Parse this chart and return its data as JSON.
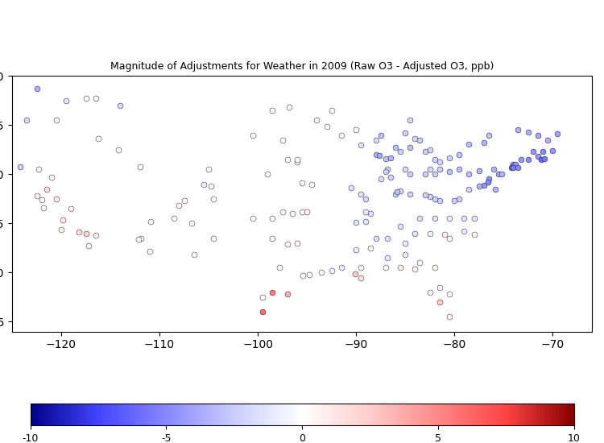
{
  "title": "Magnitude of Adjustments for Weather in 2009 (Raw O3 - Adjusted O3, ppb)",
  "colorbar_min": -10,
  "colorbar_max": 10,
  "colorbar_ticks": [
    -10,
    -5,
    0,
    5,
    10
  ],
  "stations": [
    {
      "lon": -122.5,
      "lat": 48.7,
      "val": -3.5
    },
    {
      "lon": -119.5,
      "lat": 47.5,
      "val": -1.5
    },
    {
      "lon": -114.0,
      "lat": 47.0,
      "val": -2.0
    },
    {
      "lon": -123.5,
      "lat": 45.5,
      "val": -2.0
    },
    {
      "lon": -120.5,
      "lat": 45.5,
      "val": 0.5
    },
    {
      "lon": -117.5,
      "lat": 47.7,
      "val": 0.2
    },
    {
      "lon": -122.5,
      "lat": 37.8,
      "val": 0.5
    },
    {
      "lon": -121.5,
      "lat": 38.5,
      "val": 1.5
    },
    {
      "lon": -120.5,
      "lat": 37.5,
      "val": 1.0
    },
    {
      "lon": -119.0,
      "lat": 36.5,
      "val": 0.5
    },
    {
      "lon": -117.5,
      "lat": 34.0,
      "val": 2.0
    },
    {
      "lon": -118.2,
      "lat": 34.1,
      "val": 1.5
    },
    {
      "lon": -116.5,
      "lat": 33.8,
      "val": 0.8
    },
    {
      "lon": -117.2,
      "lat": 32.7,
      "val": 0.5
    },
    {
      "lon": -122.0,
      "lat": 37.4,
      "val": 0.3
    },
    {
      "lon": -121.8,
      "lat": 36.6,
      "val": 0.2
    },
    {
      "lon": -120.0,
      "lat": 34.4,
      "val": 0.5
    },
    {
      "lon": -119.8,
      "lat": 35.4,
      "val": 1.0
    },
    {
      "lon": -121.0,
      "lat": 39.7,
      "val": 0.3
    },
    {
      "lon": -122.3,
      "lat": 40.5,
      "val": 0.5
    },
    {
      "lon": -124.2,
      "lat": 40.8,
      "val": -2.5
    },
    {
      "lon": -114.2,
      "lat": 42.5,
      "val": 0.2
    },
    {
      "lon": -112.0,
      "lat": 40.8,
      "val": 0.3
    },
    {
      "lon": -111.9,
      "lat": 33.5,
      "val": 0.3
    },
    {
      "lon": -112.1,
      "lat": 33.4,
      "val": 0.5
    },
    {
      "lon": -111.0,
      "lat": 32.2,
      "val": 0.3
    },
    {
      "lon": -110.9,
      "lat": 35.2,
      "val": 0.2
    },
    {
      "lon": -108.0,
      "lat": 36.8,
      "val": 0.5
    },
    {
      "lon": -106.7,
      "lat": 35.0,
      "val": 0.3
    },
    {
      "lon": -105.0,
      "lat": 40.5,
      "val": 0.2
    },
    {
      "lon": -105.5,
      "lat": 39.0,
      "val": -1.0
    },
    {
      "lon": -104.5,
      "lat": 37.5,
      "val": 0.2
    },
    {
      "lon": -104.8,
      "lat": 38.8,
      "val": -0.5
    },
    {
      "lon": -107.5,
      "lat": 37.3,
      "val": 0.3
    },
    {
      "lon": -108.5,
      "lat": 35.5,
      "val": 0.2
    },
    {
      "lon": -104.5,
      "lat": 33.5,
      "val": 0.5
    },
    {
      "lon": -106.5,
      "lat": 31.8,
      "val": 0.3
    },
    {
      "lon": -116.2,
      "lat": 43.6,
      "val": 0.2
    },
    {
      "lon": -116.5,
      "lat": 47.7,
      "val": 0.5
    },
    {
      "lon": -98.5,
      "lat": 46.5,
      "val": 0.2
    },
    {
      "lon": -100.5,
      "lat": 44.0,
      "val": 0.2
    },
    {
      "lon": -96.8,
      "lat": 46.8,
      "val": 0.2
    },
    {
      "lon": -97.0,
      "lat": 41.5,
      "val": 0.5
    },
    {
      "lon": -96.0,
      "lat": 41.3,
      "val": 0.5
    },
    {
      "lon": -95.5,
      "lat": 39.1,
      "val": 0.3
    },
    {
      "lon": -94.5,
      "lat": 39.0,
      "val": -0.5
    },
    {
      "lon": -93.0,
      "lat": 44.9,
      "val": 0.3
    },
    {
      "lon": -94.0,
      "lat": 45.5,
      "val": 0.5
    },
    {
      "lon": -92.5,
      "lat": 46.5,
      "val": 0.2
    },
    {
      "lon": -91.5,
      "lat": 44.0,
      "val": 0.5
    },
    {
      "lon": -90.0,
      "lat": 44.5,
      "val": 0.2
    },
    {
      "lon": -87.5,
      "lat": 44.0,
      "val": -3.0
    },
    {
      "lon": -88.0,
      "lat": 43.5,
      "val": -2.0
    },
    {
      "lon": -89.5,
      "lat": 43.0,
      "val": -1.5
    },
    {
      "lon": -88.0,
      "lat": 42.0,
      "val": -3.5
    },
    {
      "lon": -87.6,
      "lat": 41.9,
      "val": -4.0
    },
    {
      "lon": -87.0,
      "lat": 41.6,
      "val": -3.0
    },
    {
      "lon": -86.5,
      "lat": 41.7,
      "val": -3.5
    },
    {
      "lon": -86.0,
      "lat": 42.7,
      "val": -3.0
    },
    {
      "lon": -85.5,
      "lat": 42.3,
      "val": -2.5
    },
    {
      "lon": -84.5,
      "lat": 42.7,
      "val": -3.0
    },
    {
      "lon": -83.0,
      "lat": 42.3,
      "val": -2.5
    },
    {
      "lon": -84.0,
      "lat": 43.6,
      "val": -2.0
    },
    {
      "lon": -85.0,
      "lat": 44.2,
      "val": -2.5
    },
    {
      "lon": -84.5,
      "lat": 45.5,
      "val": -2.0
    },
    {
      "lon": -83.5,
      "lat": 43.5,
      "val": -2.5
    },
    {
      "lon": -82.5,
      "lat": 42.5,
      "val": -2.0
    },
    {
      "lon": -82.0,
      "lat": 41.5,
      "val": -2.5
    },
    {
      "lon": -81.5,
      "lat": 41.3,
      "val": -2.0
    },
    {
      "lon": -80.5,
      "lat": 41.7,
      "val": -2.5
    },
    {
      "lon": -79.5,
      "lat": 42.0,
      "val": -3.0
    },
    {
      "lon": -78.5,
      "lat": 43.1,
      "val": -3.0
    },
    {
      "lon": -77.0,
      "lat": 43.2,
      "val": -3.5
    },
    {
      "lon": -76.5,
      "lat": 44.0,
      "val": -3.0
    },
    {
      "lon": -73.5,
      "lat": 44.5,
      "val": -3.5
    },
    {
      "lon": -72.5,
      "lat": 44.3,
      "val": -3.5
    },
    {
      "lon": -71.5,
      "lat": 44.0,
      "val": -4.0
    },
    {
      "lon": -70.5,
      "lat": 43.5,
      "val": -3.5
    },
    {
      "lon": -69.5,
      "lat": 44.1,
      "val": -4.0
    },
    {
      "lon": -72.0,
      "lat": 42.3,
      "val": -4.5
    },
    {
      "lon": -71.0,
      "lat": 42.3,
      "val": -5.0
    },
    {
      "lon": -70.0,
      "lat": 42.4,
      "val": -4.5
    },
    {
      "lon": -74.0,
      "lat": 41.0,
      "val": -5.0
    },
    {
      "lon": -73.8,
      "lat": 41.0,
      "val": -4.5
    },
    {
      "lon": -73.2,
      "lat": 41.5,
      "val": -4.5
    },
    {
      "lon": -72.5,
      "lat": 41.5,
      "val": -5.0
    },
    {
      "lon": -71.5,
      "lat": 41.8,
      "val": -4.5
    },
    {
      "lon": -71.2,
      "lat": 41.5,
      "val": -6.0
    },
    {
      "lon": -70.8,
      "lat": 41.6,
      "val": -5.5
    },
    {
      "lon": -74.2,
      "lat": 40.7,
      "val": -6.0
    },
    {
      "lon": -74.0,
      "lat": 40.7,
      "val": -5.5
    },
    {
      "lon": -73.5,
      "lat": 40.7,
      "val": -5.0
    },
    {
      "lon": -75.5,
      "lat": 40.0,
      "val": -4.0
    },
    {
      "lon": -75.2,
      "lat": 40.0,
      "val": -3.5
    },
    {
      "lon": -76.0,
      "lat": 40.5,
      "val": -3.5
    },
    {
      "lon": -77.5,
      "lat": 40.4,
      "val": -3.5
    },
    {
      "lon": -76.5,
      "lat": 39.5,
      "val": -4.5
    },
    {
      "lon": -77.0,
      "lat": 38.9,
      "val": -4.5
    },
    {
      "lon": -76.6,
      "lat": 39.2,
      "val": -5.0
    },
    {
      "lon": -75.8,
      "lat": 38.5,
      "val": -3.5
    },
    {
      "lon": -77.5,
      "lat": 38.8,
      "val": -3.5
    },
    {
      "lon": -78.5,
      "lat": 38.5,
      "val": -2.5
    },
    {
      "lon": -79.5,
      "lat": 37.5,
      "val": -2.5
    },
    {
      "lon": -80.0,
      "lat": 37.3,
      "val": -2.5
    },
    {
      "lon": -81.5,
      "lat": 37.3,
      "val": -2.5
    },
    {
      "lon": -82.0,
      "lat": 37.5,
      "val": -2.5
    },
    {
      "lon": -82.5,
      "lat": 37.7,
      "val": -2.5
    },
    {
      "lon": -83.0,
      "lat": 37.9,
      "val": -2.5
    },
    {
      "lon": -84.5,
      "lat": 38.0,
      "val": -2.5
    },
    {
      "lon": -85.5,
      "lat": 38.3,
      "val": -2.0
    },
    {
      "lon": -86.0,
      "lat": 38.0,
      "val": -2.5
    },
    {
      "lon": -85.8,
      "lat": 38.2,
      "val": -3.0
    },
    {
      "lon": -86.5,
      "lat": 39.7,
      "val": -2.5
    },
    {
      "lon": -87.5,
      "lat": 39.5,
      "val": -2.0
    },
    {
      "lon": -86.8,
      "lat": 40.5,
      "val": -2.0
    },
    {
      "lon": -87.0,
      "lat": 40.3,
      "val": -2.5
    },
    {
      "lon": -85.0,
      "lat": 40.5,
      "val": -2.0
    },
    {
      "lon": -84.5,
      "lat": 40.0,
      "val": -2.5
    },
    {
      "lon": -83.0,
      "lat": 40.0,
      "val": -2.5
    },
    {
      "lon": -82.5,
      "lat": 40.5,
      "val": -2.0
    },
    {
      "lon": -82.0,
      "lat": 40.0,
      "val": -2.5
    },
    {
      "lon": -81.5,
      "lat": 40.5,
      "val": -2.5
    },
    {
      "lon": -80.5,
      "lat": 40.3,
      "val": -3.0
    },
    {
      "lon": -79.5,
      "lat": 40.5,
      "val": -3.0
    },
    {
      "lon": -78.5,
      "lat": 40.0,
      "val": -3.0
    },
    {
      "lon": -83.5,
      "lat": 35.5,
      "val": -1.5
    },
    {
      "lon": -82.0,
      "lat": 35.5,
      "val": -1.5
    },
    {
      "lon": -80.5,
      "lat": 35.5,
      "val": -1.0
    },
    {
      "lon": -79.0,
      "lat": 35.5,
      "val": -1.5
    },
    {
      "lon": -78.0,
      "lat": 35.5,
      "val": -1.5
    },
    {
      "lon": -81.0,
      "lat": 33.9,
      "val": 0.5
    },
    {
      "lon": -79.0,
      "lat": 34.2,
      "val": -1.0
    },
    {
      "lon": -78.0,
      "lat": 33.9,
      "val": 0.5
    },
    {
      "lon": -80.5,
      "lat": 33.5,
      "val": 0.5
    },
    {
      "lon": -82.5,
      "lat": 34.0,
      "val": -0.5
    },
    {
      "lon": -84.0,
      "lat": 34.0,
      "val": -1.5
    },
    {
      "lon": -85.5,
      "lat": 34.7,
      "val": -1.5
    },
    {
      "lon": -88.0,
      "lat": 33.5,
      "val": -1.5
    },
    {
      "lon": -86.8,
      "lat": 33.5,
      "val": -1.5
    },
    {
      "lon": -85.0,
      "lat": 33.0,
      "val": -1.0
    },
    {
      "lon": -90.0,
      "lat": 35.1,
      "val": -1.5
    },
    {
      "lon": -89.0,
      "lat": 35.2,
      "val": -1.5
    },
    {
      "lon": -90.5,
      "lat": 38.6,
      "val": -1.5
    },
    {
      "lon": -89.0,
      "lat": 37.5,
      "val": -2.0
    },
    {
      "lon": -89.5,
      "lat": 38.0,
      "val": -1.5
    },
    {
      "lon": -88.5,
      "lat": 36.0,
      "val": -1.5
    },
    {
      "lon": -89.0,
      "lat": 36.2,
      "val": -1.0
    },
    {
      "lon": -90.0,
      "lat": 32.3,
      "val": -1.0
    },
    {
      "lon": -88.5,
      "lat": 32.5,
      "val": 0.5
    },
    {
      "lon": -89.5,
      "lat": 30.5,
      "val": 0.5
    },
    {
      "lon": -90.1,
      "lat": 29.9,
      "val": 2.5
    },
    {
      "lon": -89.5,
      "lat": 29.5,
      "val": 1.5
    },
    {
      "lon": -91.5,
      "lat": 30.5,
      "val": -1.0
    },
    {
      "lon": -92.5,
      "lat": 30.2,
      "val": -0.5
    },
    {
      "lon": -93.5,
      "lat": 30.0,
      "val": 0.3
    },
    {
      "lon": -94.8,
      "lat": 29.8,
      "val": 0.3
    },
    {
      "lon": -95.4,
      "lat": 29.7,
      "val": 0.3
    },
    {
      "lon": -97.8,
      "lat": 30.5,
      "val": 0.3
    },
    {
      "lon": -99.5,
      "lat": 27.5,
      "val": 0.3
    },
    {
      "lon": -96.0,
      "lat": 33.0,
      "val": 0.5
    },
    {
      "lon": -97.0,
      "lat": 32.9,
      "val": 0.3
    },
    {
      "lon": -98.5,
      "lat": 33.5,
      "val": 0.3
    },
    {
      "lon": -100.5,
      "lat": 35.5,
      "val": 0.2
    },
    {
      "lon": -98.5,
      "lat": 35.5,
      "val": 0.3
    },
    {
      "lon": -96.5,
      "lat": 36.0,
      "val": 0.5
    },
    {
      "lon": -97.5,
      "lat": 36.2,
      "val": 0.3
    },
    {
      "lon": -95.5,
      "lat": 36.2,
      "val": 0.3
    },
    {
      "lon": -95.0,
      "lat": 36.2,
      "val": 0.5
    },
    {
      "lon": -96.0,
      "lat": 41.5,
      "val": 0.3
    },
    {
      "lon": -99.0,
      "lat": 40.0,
      "val": 0.2
    },
    {
      "lon": -97.5,
      "lat": 43.5,
      "val": 0.3
    },
    {
      "lon": -98.5,
      "lat": 28.0,
      "val": 5.5
    },
    {
      "lon": -99.5,
      "lat": 26.0,
      "val": 6.0
    },
    {
      "lon": -97.0,
      "lat": 27.8,
      "val": 3.5
    },
    {
      "lon": -80.5,
      "lat": 25.5,
      "val": 0.5
    },
    {
      "lon": -81.5,
      "lat": 27.0,
      "val": 2.5
    },
    {
      "lon": -81.5,
      "lat": 28.5,
      "val": 0.3
    },
    {
      "lon": -80.5,
      "lat": 27.8,
      "val": 0.3
    },
    {
      "lon": -82.5,
      "lat": 28.0,
      "val": 0.3
    },
    {
      "lon": -82.0,
      "lat": 30.5,
      "val": 0.5
    },
    {
      "lon": -84.0,
      "lat": 30.4,
      "val": 0.5
    },
    {
      "lon": -85.5,
      "lat": 30.5,
      "val": 0.5
    },
    {
      "lon": -87.0,
      "lat": 30.5,
      "val": 0.3
    },
    {
      "lon": -86.8,
      "lat": 31.5,
      "val": -1.0
    },
    {
      "lon": -85.0,
      "lat": 31.8,
      "val": -1.0
    },
    {
      "lon": -83.5,
      "lat": 31.0,
      "val": 0.5
    }
  ]
}
